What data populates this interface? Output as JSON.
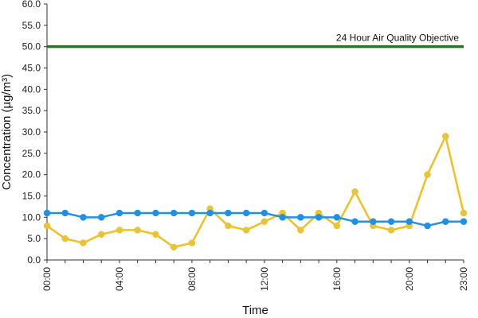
{
  "chart_data": {
    "type": "line",
    "title": "",
    "xlabel": "Time",
    "ylabel": "Concentration (µg/m³)",
    "ylim": [
      0,
      60
    ],
    "y_ticks": [
      "0.0",
      "5.0",
      "10.0",
      "15.0",
      "20.0",
      "25.0",
      "30.0",
      "35.0",
      "40.0",
      "45.0",
      "50.0",
      "55.0",
      "60.0"
    ],
    "x": [
      "00:00",
      "01:00",
      "02:00",
      "03:00",
      "04:00",
      "05:00",
      "06:00",
      "07:00",
      "08:00",
      "09:00",
      "10:00",
      "11:00",
      "12:00",
      "13:00",
      "14:00",
      "15:00",
      "16:00",
      "17:00",
      "18:00",
      "19:00",
      "20:00",
      "21:00",
      "22:00",
      "23:00"
    ],
    "x_tick_labels": [
      "00:00",
      "04:00",
      "08:00",
      "12:00",
      "16:00",
      "20:00",
      "23:00"
    ],
    "grid": false,
    "legend": "none",
    "series": [
      {
        "color": "#f2c01e",
        "point_color": "#e8c43a",
        "values": [
          8,
          5,
          4,
          6,
          7,
          7,
          6,
          3,
          4,
          12,
          8,
          7,
          9,
          11,
          7,
          11,
          8,
          16,
          8,
          7,
          8,
          20,
          29,
          11
        ]
      },
      {
        "color": "#1e90e6",
        "point_color": "#1e90e6",
        "values": [
          11,
          11,
          10,
          10,
          11,
          11,
          11,
          11,
          11,
          11,
          11,
          11,
          11,
          10,
          10,
          10,
          10,
          9,
          9,
          9,
          9,
          8,
          9,
          9
        ]
      }
    ],
    "reference_line": {
      "value": 50,
      "color": "#1e7a1e",
      "label": "24 Hour Air Quality Objective"
    }
  }
}
